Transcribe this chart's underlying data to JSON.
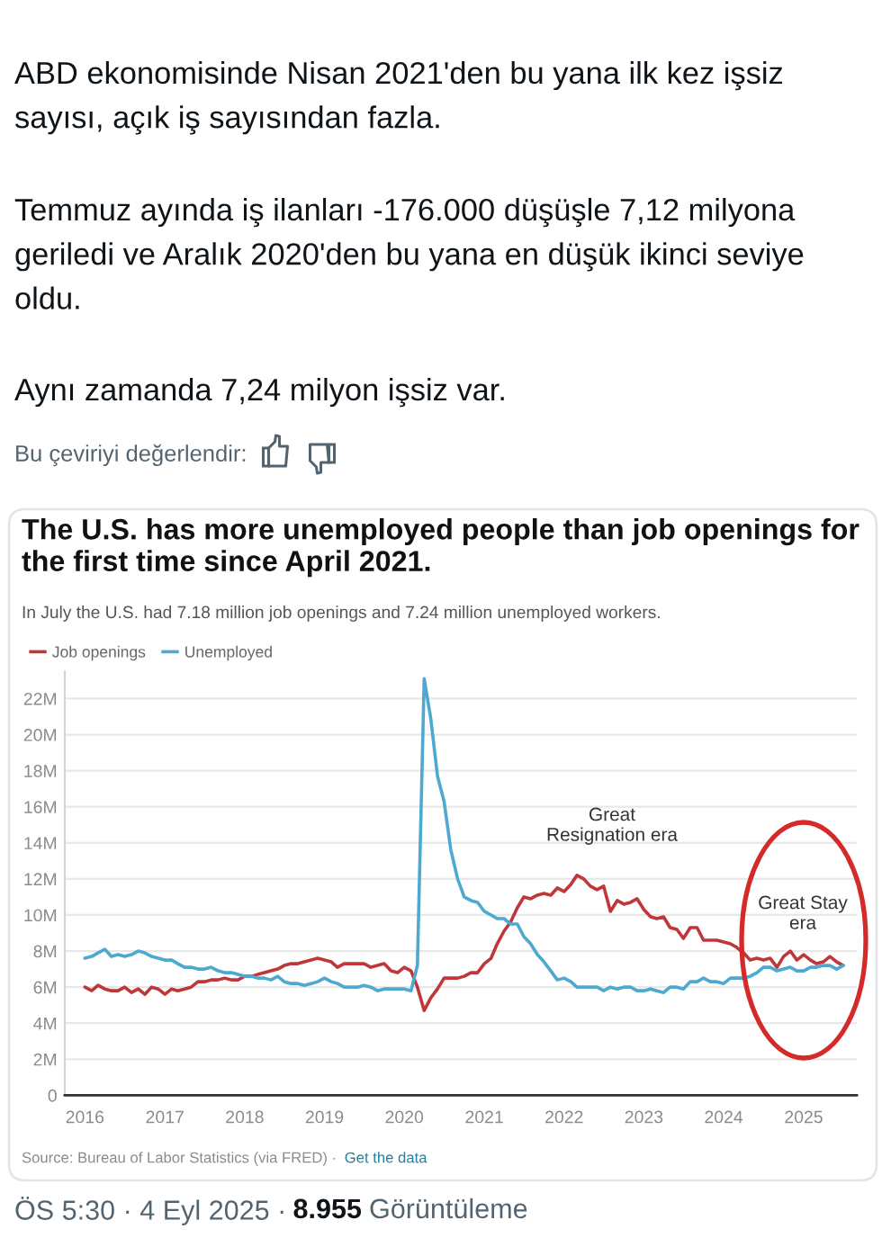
{
  "chart_data": {
    "type": "line",
    "title": "The U.S. has more unemployed people than job openings for the first time since April 2021.",
    "subtitle": "In July the U.S. had 7.18 million job openings and 7.24 million unemployed workers.",
    "x": [
      "2016-01",
      "2016-02",
      "2016-03",
      "2016-04",
      "2016-05",
      "2016-06",
      "2016-07",
      "2016-08",
      "2016-09",
      "2016-10",
      "2016-11",
      "2016-12",
      "2017-01",
      "2017-02",
      "2017-03",
      "2017-04",
      "2017-05",
      "2017-06",
      "2017-07",
      "2017-08",
      "2017-09",
      "2017-10",
      "2017-11",
      "2017-12",
      "2018-01",
      "2018-02",
      "2018-03",
      "2018-04",
      "2018-05",
      "2018-06",
      "2018-07",
      "2018-08",
      "2018-09",
      "2018-10",
      "2018-11",
      "2018-12",
      "2019-01",
      "2019-02",
      "2019-03",
      "2019-04",
      "2019-05",
      "2019-06",
      "2019-07",
      "2019-08",
      "2019-09",
      "2019-10",
      "2019-11",
      "2019-12",
      "2020-01",
      "2020-02",
      "2020-03",
      "2020-04",
      "2020-05",
      "2020-06",
      "2020-07",
      "2020-08",
      "2020-09",
      "2020-10",
      "2020-11",
      "2020-12",
      "2021-01",
      "2021-02",
      "2021-03",
      "2021-04",
      "2021-05",
      "2021-06",
      "2021-07",
      "2021-08",
      "2021-09",
      "2021-10",
      "2021-11",
      "2021-12",
      "2022-01",
      "2022-02",
      "2022-03",
      "2022-04",
      "2022-05",
      "2022-06",
      "2022-07",
      "2022-08",
      "2022-09",
      "2022-10",
      "2022-11",
      "2022-12",
      "2023-01",
      "2023-02",
      "2023-03",
      "2023-04",
      "2023-05",
      "2023-06",
      "2023-07",
      "2023-08",
      "2023-09",
      "2023-10",
      "2023-11",
      "2023-12",
      "2024-01",
      "2024-02",
      "2024-03",
      "2024-04",
      "2024-05",
      "2024-06",
      "2024-07",
      "2024-08",
      "2024-09",
      "2024-10",
      "2024-11",
      "2024-12",
      "2025-01",
      "2025-02",
      "2025-03",
      "2025-04",
      "2025-05",
      "2025-06",
      "2025-07"
    ],
    "series": [
      {
        "name": "Job openings",
        "color": "#c0373a",
        "values": [
          6.0,
          5.8,
          6.1,
          5.9,
          5.8,
          5.8,
          6.0,
          5.7,
          5.9,
          5.6,
          6.0,
          5.9,
          5.6,
          5.9,
          5.8,
          5.9,
          6.0,
          6.3,
          6.3,
          6.4,
          6.4,
          6.5,
          6.4,
          6.4,
          6.6,
          6.6,
          6.7,
          6.8,
          6.9,
          7.0,
          7.2,
          7.3,
          7.3,
          7.4,
          7.5,
          7.6,
          7.5,
          7.4,
          7.1,
          7.3,
          7.3,
          7.3,
          7.3,
          7.1,
          7.2,
          7.3,
          6.9,
          6.8,
          7.1,
          6.9,
          6.0,
          4.7,
          5.4,
          5.9,
          6.5,
          6.5,
          6.5,
          6.6,
          6.8,
          6.8,
          7.3,
          7.6,
          8.4,
          9.1,
          9.6,
          10.4,
          11.0,
          10.9,
          11.1,
          11.2,
          11.1,
          11.5,
          11.3,
          11.7,
          12.2,
          12.0,
          11.6,
          11.4,
          11.6,
          10.2,
          10.8,
          10.6,
          10.7,
          10.9,
          10.3,
          9.9,
          9.8,
          9.9,
          9.3,
          9.2,
          8.7,
          9.3,
          9.3,
          8.6,
          8.6,
          8.6,
          8.5,
          8.4,
          8.2,
          7.9,
          7.5,
          7.6,
          7.5,
          7.6,
          7.1,
          7.7,
          8.0,
          7.5,
          7.8,
          7.5,
          7.3,
          7.4,
          7.7,
          7.4,
          7.2
        ]
      },
      {
        "name": "Unemployed",
        "color": "#4ea9d1",
        "values": [
          7.6,
          7.7,
          7.9,
          8.1,
          7.7,
          7.8,
          7.7,
          7.8,
          8.0,
          7.9,
          7.7,
          7.6,
          7.5,
          7.5,
          7.3,
          7.1,
          7.1,
          7.0,
          7.0,
          7.1,
          6.9,
          6.8,
          6.8,
          6.7,
          6.6,
          6.6,
          6.5,
          6.5,
          6.4,
          6.6,
          6.3,
          6.2,
          6.2,
          6.1,
          6.2,
          6.3,
          6.5,
          6.3,
          6.2,
          6.0,
          6.0,
          6.0,
          6.1,
          6.0,
          5.8,
          5.9,
          5.9,
          5.9,
          5.9,
          5.8,
          7.2,
          23.1,
          20.9,
          17.7,
          16.3,
          13.6,
          12.0,
          11.0,
          10.8,
          10.7,
          10.2,
          10.0,
          9.8,
          9.8,
          9.5,
          9.5,
          8.8,
          8.4,
          7.8,
          7.4,
          6.9,
          6.4,
          6.5,
          6.3,
          6.0,
          6.0,
          6.0,
          6.0,
          5.8,
          6.0,
          5.9,
          6.0,
          6.0,
          5.8,
          5.8,
          5.9,
          5.8,
          5.7,
          6.0,
          6.0,
          5.9,
          6.3,
          6.3,
          6.5,
          6.3,
          6.3,
          6.2,
          6.5,
          6.5,
          6.5,
          6.6,
          6.8,
          7.1,
          7.1,
          6.9,
          7.0,
          7.1,
          6.9,
          6.9,
          7.1,
          7.1,
          7.2,
          7.2,
          7.0,
          7.2
        ]
      }
    ],
    "xlim": [
      "2015-10",
      "2025-09"
    ],
    "xticks": [
      "2016",
      "2017",
      "2018",
      "2019",
      "2020",
      "2021",
      "2022",
      "2023",
      "2024",
      "2025"
    ],
    "ylim": [
      0,
      23.5
    ],
    "yticks": [
      0,
      {
        "value": 2,
        "label": "2M"
      },
      {
        "value": 4,
        "label": "4M"
      },
      {
        "value": 6,
        "label": "6M"
      },
      {
        "value": 8,
        "label": "8M"
      },
      {
        "value": 10,
        "label": "10M"
      },
      {
        "value": 12,
        "label": "12M"
      },
      {
        "value": 14,
        "label": "14M"
      },
      {
        "value": 16,
        "label": "16M"
      },
      {
        "value": 18,
        "label": "18M"
      },
      {
        "value": 20,
        "label": "20M"
      },
      {
        "value": 22,
        "label": "22M"
      }
    ],
    "grid": "y",
    "legend": "top left",
    "line_style": "solid",
    "annotations": [
      "ABD ekonomisinde Nisan 2021'den bu yana ilk kez işsiz sayısı, açık iş sayısından fazla.",
      "Temmuz ayında iş ilanları -176.000 düşüşle 7,12 milyona geriledi ve Aralık 2020'den bu yana en düşük ikinci seviye oldu.",
      "Aynı zamanda 7,24 milyon işsiz var.",
      "Bu çeviriyi değerlendir:",
      "Great Resignation era",
      "Great Stay era",
      "Source: Bureau of Labor Statistics (via FRED) ·",
      "Get the data",
      "ÖS 5:30 · 4 Eyl 2025 ·",
      "8.955",
      "Görüntüleme"
    ]
  }
}
